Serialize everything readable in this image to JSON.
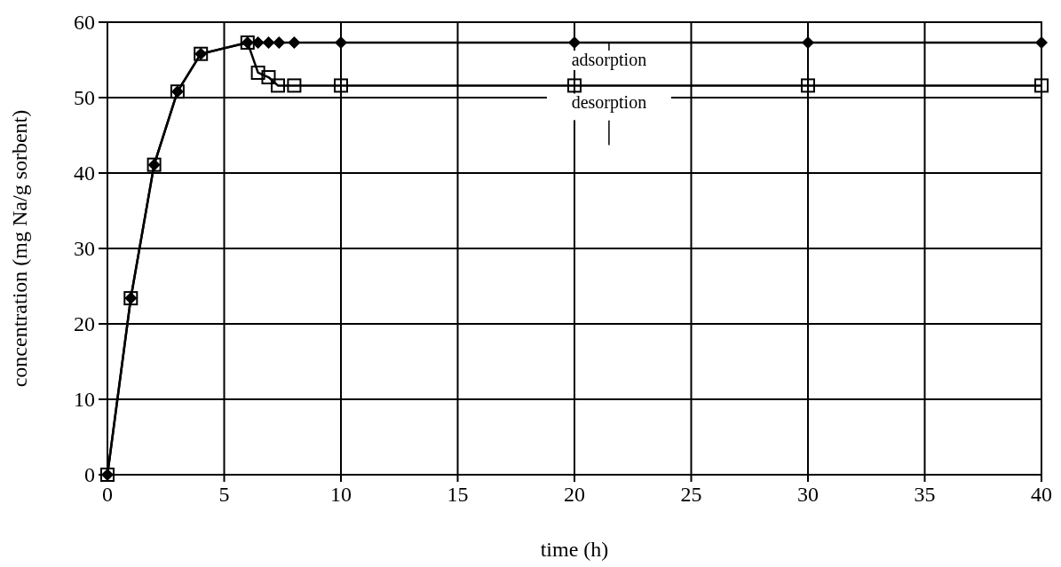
{
  "chart_data": {
    "type": "line",
    "xlabel": "time (h)",
    "ylabel": "concentration (mg Na/g sorbent)",
    "xlim": [
      0,
      40
    ],
    "ylim": [
      0,
      60
    ],
    "xticks": [
      0,
      5,
      10,
      15,
      20,
      25,
      30,
      35,
      40
    ],
    "yticks": [
      0,
      10,
      20,
      30,
      40,
      50,
      60
    ],
    "grid": true,
    "series": [
      {
        "name": "adsorption",
        "color": "#000000",
        "marker": "diamond",
        "x": [
          0,
          1,
          2,
          3,
          4,
          6,
          6.45,
          6.9,
          7.35,
          8,
          10,
          20,
          30,
          40
        ],
        "values": [
          0,
          23.4,
          41.1,
          50.8,
          55.8,
          57.3,
          57.3,
          57.3,
          57.3,
          57.3,
          57.3,
          57.3,
          57.3,
          57.3
        ]
      },
      {
        "name": "desorption",
        "color": "#000000",
        "marker": "square",
        "x": [
          0,
          1,
          2,
          3,
          4,
          6,
          6.45,
          6.9,
          7.3,
          8,
          10,
          20,
          30,
          40
        ],
        "values": [
          0,
          23.4,
          41.1,
          50.8,
          55.8,
          57.3,
          53.3,
          52.7,
          51.6,
          51.6,
          51.6,
          51.6,
          51.6,
          51.6
        ]
      }
    ]
  }
}
